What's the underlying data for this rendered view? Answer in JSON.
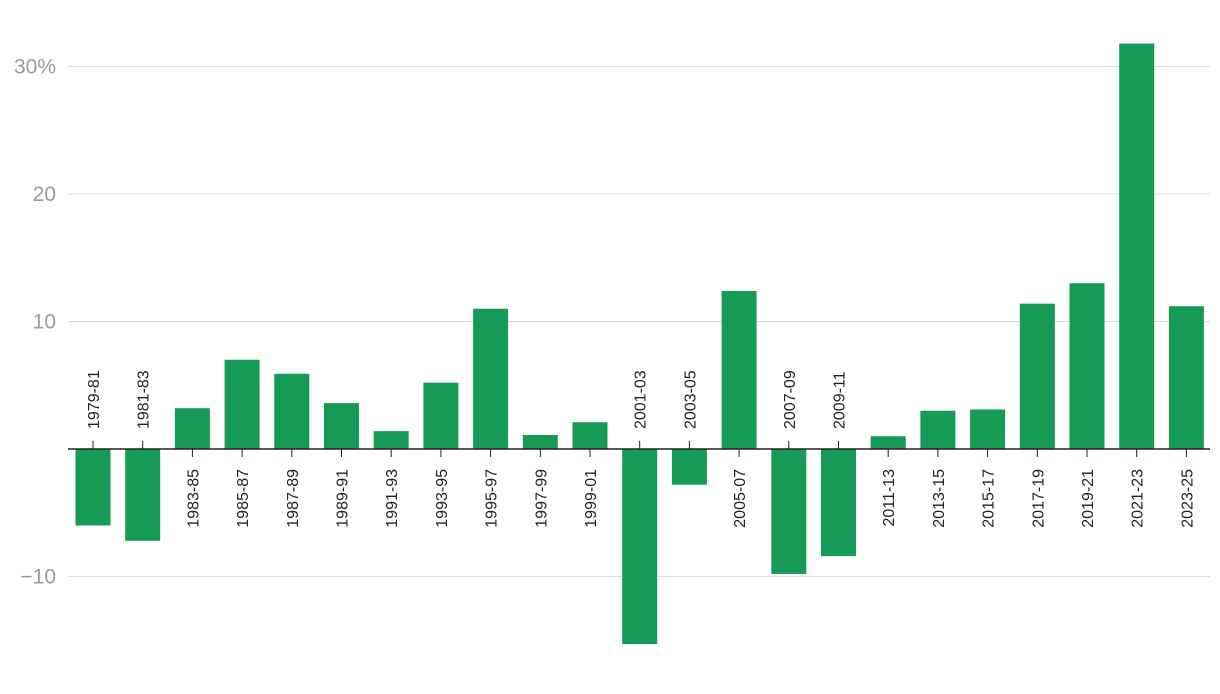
{
  "chart_data": {
    "type": "bar",
    "title": "",
    "xlabel": "",
    "ylabel": "",
    "ylim": [
      -15.5,
      32
    ],
    "yticks": [
      -10,
      10,
      20,
      30
    ],
    "ytick_labels": [
      "−10",
      "10",
      "20",
      "30%"
    ],
    "grid": true,
    "legend": "none",
    "colors": {
      "bar": "#169b57",
      "grid": "#dcdcdc",
      "axis": "#222222",
      "ytick_text": "#9a9a9a"
    },
    "categories": [
      "1979-81",
      "1981-83",
      "1983-85",
      "1985-87",
      "1987-89",
      "1989-91",
      "1991-93",
      "1993-95",
      "1995-97",
      "1997-99",
      "1999-01",
      "2001-03",
      "2003-05",
      "2005-07",
      "2007-09",
      "2009-11",
      "2011-13",
      "2013-15",
      "2015-17",
      "2017-19",
      "2019-21",
      "2021-23",
      "2023-25"
    ],
    "values": [
      -6.0,
      -7.2,
      3.2,
      7.0,
      5.9,
      3.6,
      1.4,
      5.2,
      11.0,
      1.1,
      2.1,
      -15.3,
      -2.8,
      12.4,
      -9.8,
      -8.4,
      1.0,
      3.0,
      3.1,
      11.4,
      13.0,
      31.8,
      11.2
    ]
  }
}
